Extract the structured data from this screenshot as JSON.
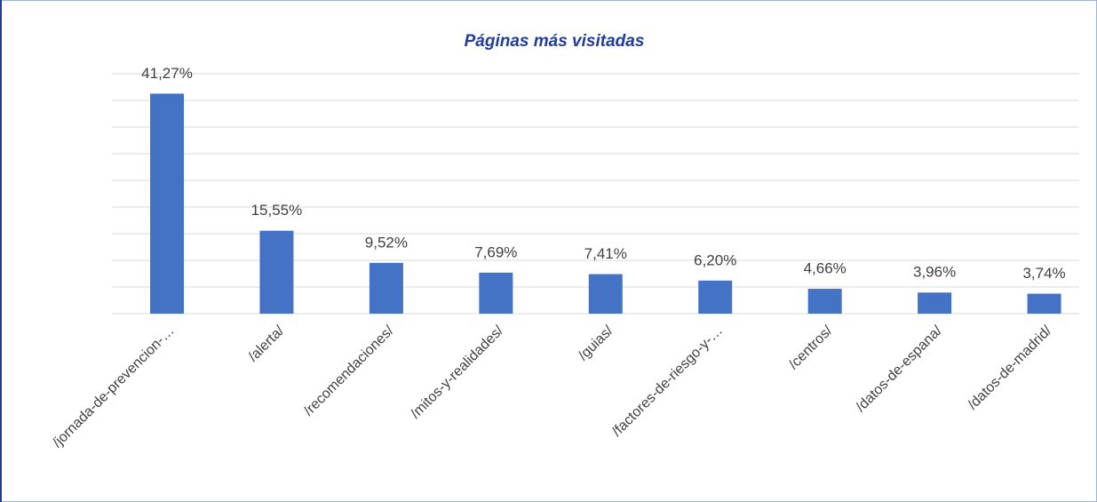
{
  "chart_data": {
    "type": "bar",
    "title": "Páginas más visitadas",
    "categories": [
      "/jornada-de-prevencion-…",
      "/alerta/",
      "/recomendaciones/",
      "/mitos-y-realidades/",
      "/guias/",
      "/factores-de-riesgo-y-…",
      "/centros/",
      "/datos-de-espana/",
      "/datos-de-madrid/"
    ],
    "values": [
      41.27,
      15.55,
      9.52,
      7.69,
      7.41,
      6.2,
      4.66,
      3.96,
      3.74
    ],
    "value_labels": [
      "41,27%",
      "15,55%",
      "9,52%",
      "7,69%",
      "7,41%",
      "6,20%",
      "4,66%",
      "3,96%",
      "3,74%"
    ],
    "color": "#4472c4",
    "ylim": [
      0,
      45
    ],
    "yticks": [
      0,
      5,
      10,
      15,
      20,
      25,
      30,
      35,
      40,
      45
    ],
    "grid": true
  }
}
